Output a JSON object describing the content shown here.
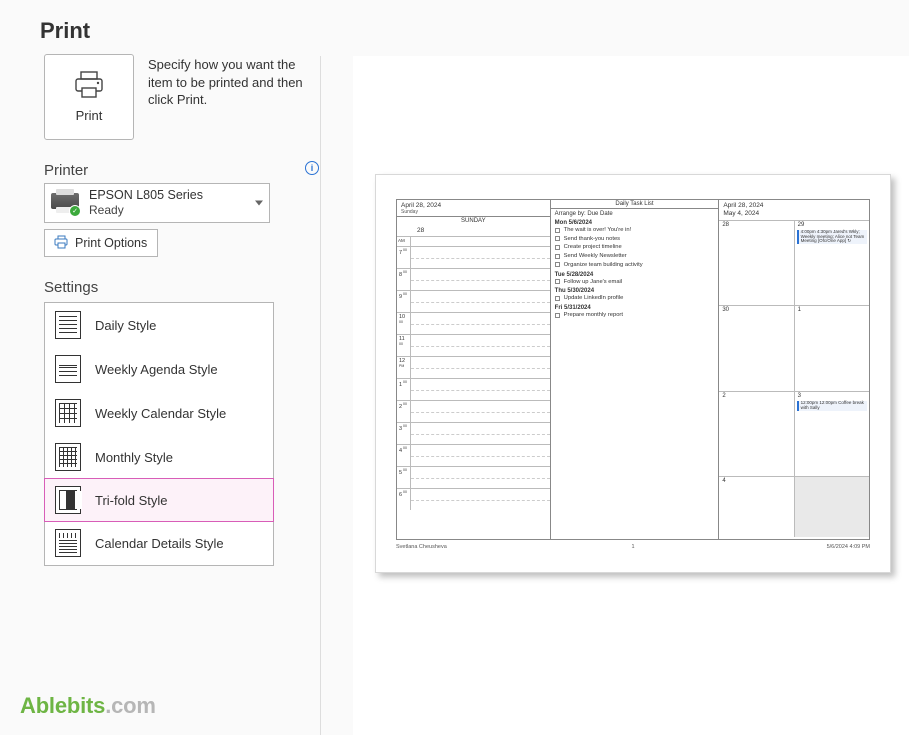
{
  "title": "Print",
  "help_text": "Specify how you want the item to be printed and then click Print.",
  "print_button_label": "Print",
  "printer": {
    "heading": "Printer",
    "name": "EPSON L805 Series",
    "status": "Ready",
    "options_label": "Print Options"
  },
  "settings": {
    "heading": "Settings",
    "styles": {
      "daily": "Daily Style",
      "weekly_agenda": "Weekly Agenda Style",
      "weekly_calendar": "Weekly Calendar Style",
      "monthly": "Monthly Style",
      "trifold": "Tri-fold Style",
      "details": "Calendar Details Style"
    },
    "selected": "trifold"
  },
  "preview": {
    "pane1": {
      "date": "April 28, 2024",
      "weekday": "Sunday",
      "day_label": "SUNDAY",
      "day_num": "28",
      "hours": [
        "7",
        "8",
        "9",
        "10",
        "11",
        "12",
        "1",
        "2",
        "3",
        "4",
        "5",
        "6"
      ],
      "am_label": "AM",
      "noon_label": "PM"
    },
    "pane2": {
      "title": "Daily Task List",
      "arrange": "Arrange by: Due Date",
      "groups": [
        {
          "hdr": "Mon 5/6/2024",
          "items": [
            "The wait is over! You're in!",
            "Send thank-you notes",
            "Create project timeline",
            "Send Weekly Newsletter",
            "Organize team building activity"
          ]
        },
        {
          "hdr": "Tue 5/28/2024",
          "items": [
            "Follow up Jane's email"
          ]
        },
        {
          "hdr": "Thu 5/30/2024",
          "items": [
            "Update LinkedIn profile"
          ]
        },
        {
          "hdr": "Fri 5/31/2024",
          "items": [
            "Prepare monthly report"
          ]
        }
      ]
    },
    "pane3": {
      "range_a": "April 28, 2024",
      "range_b": "May 4, 2024",
      "cells": [
        {
          "d": "28"
        },
        {
          "d": "29",
          "ev": "4:00pm 4:30pm Jared's Wkly; Weekly meeting; Alice not Team Meeting  [Ofc/One App] ↻"
        },
        {
          "d": "30"
        },
        {
          "d": "1"
        },
        {
          "d": "2"
        },
        {
          "d": "3",
          "ev": "12:00pm 12:00pm Coffee break with Sally"
        },
        {
          "d": "4"
        },
        {
          "d": ""
        }
      ]
    },
    "footer_left": "Svetlana Cheusheva",
    "footer_mid": "1",
    "footer_right": "5/6/2024 4:09 PM"
  },
  "watermark": {
    "a": "Ablebits",
    "b": ".com"
  }
}
